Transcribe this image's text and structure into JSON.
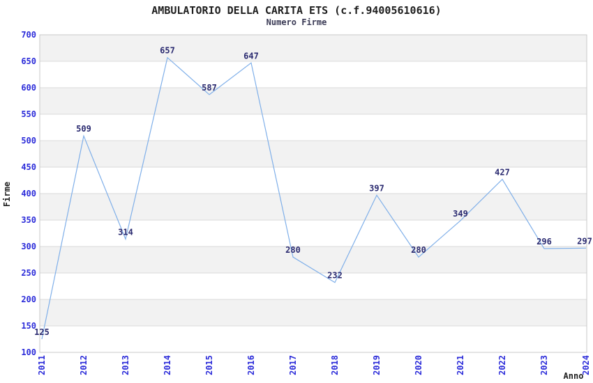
{
  "header": {
    "title": "AMBULATORIO DELLA CARITA ETS (c.f.94005610616)",
    "subtitle": "Numero Firme"
  },
  "chart_data": {
    "type": "line",
    "title": "AMBULATORIO DELLA CARITA ETS (c.f.94005610616)",
    "subtitle": "Numero Firme",
    "xlabel": "Anno",
    "ylabel": "Firme",
    "x": [
      "2011",
      "2012",
      "2013",
      "2014",
      "2015",
      "2016",
      "2017",
      "2018",
      "2019",
      "2020",
      "2021",
      "2022",
      "2023",
      "2024"
    ],
    "series": [
      {
        "name": "Numero Firme",
        "values": [
          125,
          509,
          314,
          657,
          587,
          647,
          280,
          232,
          397,
          280,
          349,
          427,
          296,
          297
        ]
      }
    ],
    "ylim": [
      100,
      700
    ],
    "ytick_step": 50,
    "grid": "horizontal",
    "banding": "alternating-gray-white-from-top",
    "legend_position": "none",
    "point_labels": "above-each-point",
    "x_tick_rotation": -90,
    "colors": {
      "line": "#7fafe9",
      "tick_label": "#2b2bd9",
      "data_label": "#2a2a70",
      "title": "#1e1e1e",
      "subtitle": "#3a3a55",
      "axis_title": "#1e1e1e",
      "band_gray": "#f2f2f2",
      "band_white": "#ffffff",
      "gridline": "#d9d9d9",
      "border": "#c9c9c9",
      "background": "#ffffff"
    }
  }
}
